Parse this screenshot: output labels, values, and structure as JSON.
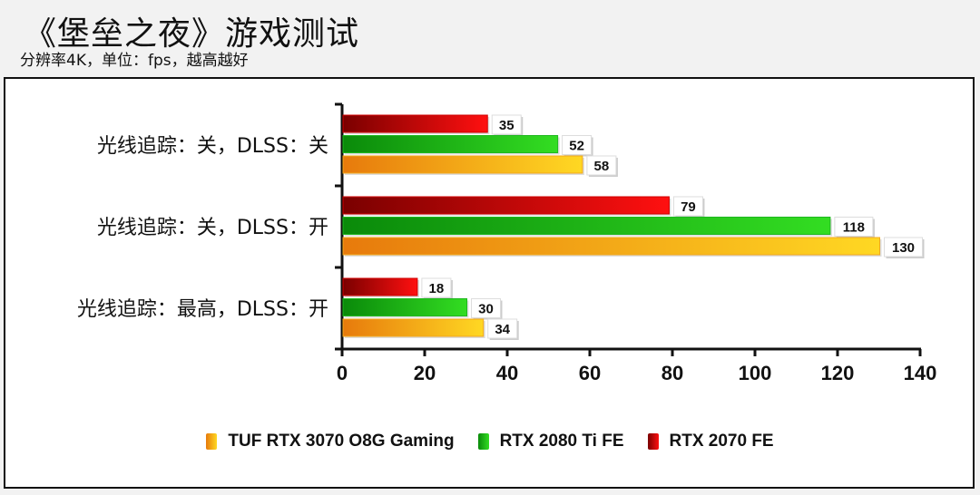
{
  "header": {
    "title": "《堡垒之夜》游戏测试",
    "subtitle": "分辨率4K，单位：fps，越高越好"
  },
  "chart_data": {
    "type": "bar",
    "orientation": "horizontal",
    "categories": [
      "光线追踪：关，DLSS：关",
      "光线追踪：关，DLSS：开",
      "光线追踪：最高，DLSS：开"
    ],
    "series": [
      {
        "name": "RTX 2070 FE",
        "values": [
          35,
          79,
          18
        ],
        "color": "#d00000"
      },
      {
        "name": "RTX 2080 Ti FE",
        "values": [
          52,
          118,
          30
        ],
        "color": "#1fb81f"
      },
      {
        "name": "TUF RTX 3070 O8G Gaming",
        "values": [
          58,
          130,
          34
        ],
        "color": "#f2a81c"
      }
    ],
    "xlim": [
      0,
      140
    ],
    "xticks": [
      "0",
      "20",
      "40",
      "60",
      "80",
      "100",
      "120",
      "140"
    ],
    "legend_order": [
      "TUF RTX 3070 O8G Gaming",
      "RTX 2080 Ti FE",
      "RTX 2070 FE"
    ],
    "legend": "bottom",
    "grid": false
  }
}
